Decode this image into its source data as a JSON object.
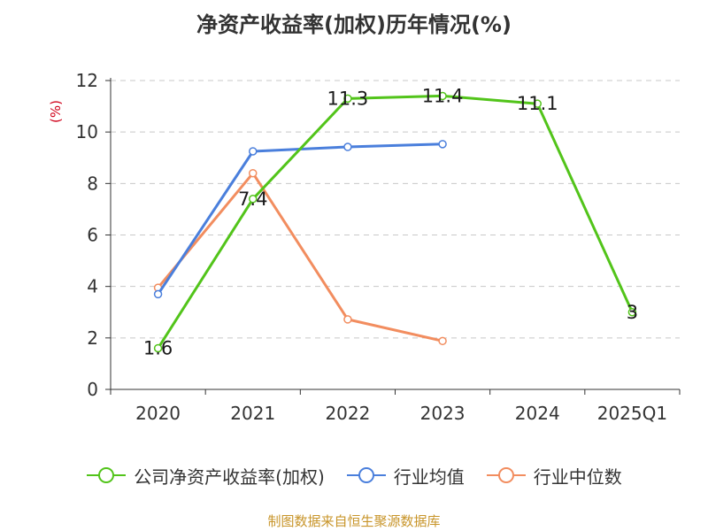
{
  "chart_data": {
    "type": "line",
    "title": "净资产收益率(加权)历年情况(%)",
    "ylabel": "(%)",
    "categories": [
      "2020",
      "2021",
      "2022",
      "2023",
      "2024",
      "2025Q1"
    ],
    "yticks": [
      "0",
      "2",
      "4",
      "6",
      "8",
      "10",
      "12"
    ],
    "ylim": [
      0,
      12
    ],
    "grid": true,
    "legend_position": "bottom",
    "series": [
      {
        "name": "公司净资产收益率(加权)",
        "color": "#52c41a",
        "values": [
          1.6,
          7.4,
          11.3,
          11.4,
          11.1,
          3
        ],
        "labels": [
          "1.6",
          "7.4",
          "11.3",
          "11.4",
          "11.1",
          "3"
        ]
      },
      {
        "name": "行业均值",
        "color": "#4a7fdc",
        "values": [
          3.7,
          9.25,
          9.42,
          9.53,
          null,
          null
        ]
      },
      {
        "name": "行业中位数",
        "color": "#f28d5f",
        "values": [
          3.95,
          8.4,
          2.72,
          1.88,
          null,
          null
        ]
      }
    ]
  },
  "footer": {
    "source": "制图数据来自恒生聚源数据库"
  }
}
